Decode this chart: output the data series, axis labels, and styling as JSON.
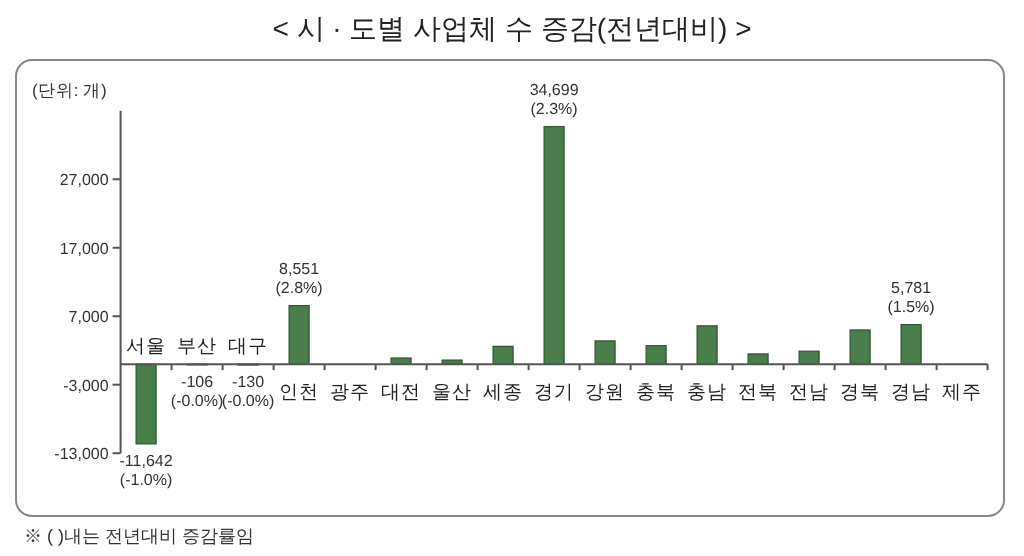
{
  "chart_data": {
    "type": "bar",
    "title": "< 시 · 도별 사업체 수 증감(전년대비) >",
    "ylabel": "(단위: 개)",
    "categories": [
      "서울",
      "부산",
      "대구",
      "인천",
      "광주",
      "대전",
      "울산",
      "세종",
      "경기",
      "강원",
      "충북",
      "충남",
      "전북",
      "전남",
      "경북",
      "경남",
      "제주"
    ],
    "values": [
      -11642,
      -106,
      -130,
      8551,
      null,
      900,
      600,
      2600,
      34699,
      3400,
      2700,
      5600,
      1500,
      1900,
      5000,
      5781,
      null
    ],
    "value_labels": [
      "-11,642\n(-1.0%)",
      "-106\n(-0.0%)",
      "-130\n(-0.0%)",
      "8,551\n(2.8%)",
      null,
      null,
      null,
      null,
      "34,699\n(2.3%)",
      null,
      null,
      null,
      null,
      null,
      null,
      "5,781\n(1.5%)",
      null
    ],
    "color": "#4a7d4c",
    "ylim": [
      -13000,
      37000
    ],
    "yticks": [
      {
        "value": -13000,
        "label": "-13,000"
      },
      {
        "value": -3000,
        "label": "-3,000"
      },
      {
        "value": 7000,
        "label": "7,000"
      },
      {
        "value": 17000,
        "label": "17,000"
      },
      {
        "value": 27000,
        "label": "27,000"
      }
    ],
    "annotations": [
      "※ (    )내는 전년대비 증감률임"
    ]
  }
}
